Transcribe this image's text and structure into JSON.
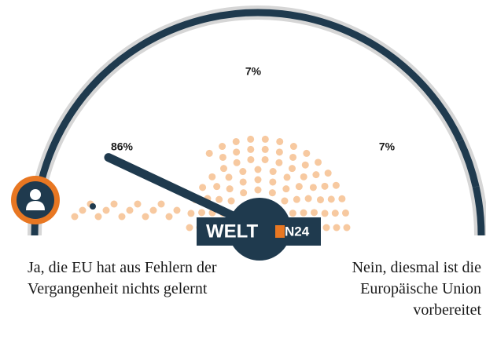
{
  "chart_data": {
    "type": "gauge",
    "categories": [
      "Ja, die EU hat aus Fehlern der Vergangenheit nichts gelernt",
      null,
      "Nein, diesmal ist die Europäische Union vorbereitet"
    ],
    "values": [
      86,
      7,
      7
    ],
    "value_labels": [
      "86%",
      "7%",
      "7%"
    ],
    "color": "#1f3a4e",
    "logo": {
      "name": "WELT",
      "channel": "N24"
    }
  }
}
